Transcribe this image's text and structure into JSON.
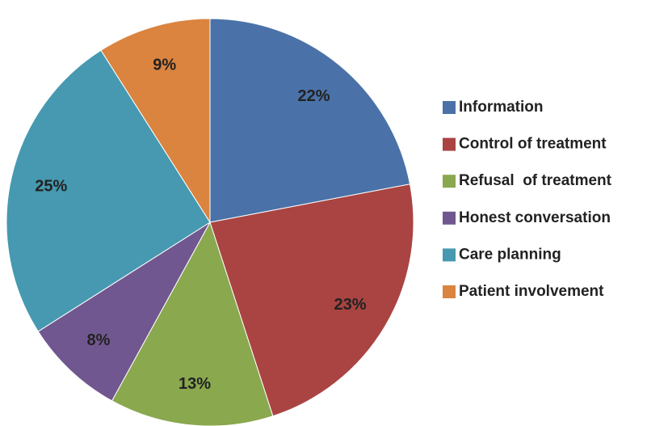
{
  "chart_data": {
    "type": "pie",
    "categories": [
      "Information",
      "Control of treatment",
      "Refusal  of treatment",
      "Honest conversation",
      "Care planning",
      "Patient involvement"
    ],
    "values": [
      22,
      23,
      13,
      8,
      25,
      9
    ],
    "value_labels": [
      "22%",
      "23%",
      "13%",
      "8%",
      "25%",
      "9%"
    ],
    "colors": [
      "#4a72a8",
      "#a94442",
      "#8aa84e",
      "#71578f",
      "#4699b0",
      "#da8440"
    ],
    "legend": "right"
  }
}
